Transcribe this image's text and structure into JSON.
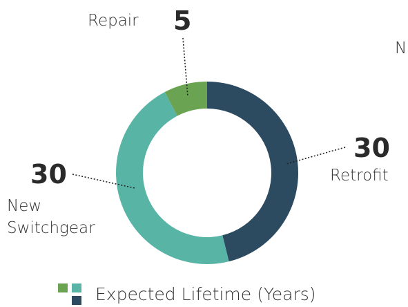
{
  "chart_data": {
    "type": "donut",
    "categories": [
      "Retrofit",
      "New Switchgear",
      "Repair"
    ],
    "series": [
      {
        "name": "Expected Lifetime (Years)",
        "values": [
          30,
          30,
          5
        ]
      }
    ],
    "colors": [
      "#2c4a60",
      "#58b5a5",
      "#6aa352"
    ],
    "annotations": [
      "N"
    ]
  }
}
